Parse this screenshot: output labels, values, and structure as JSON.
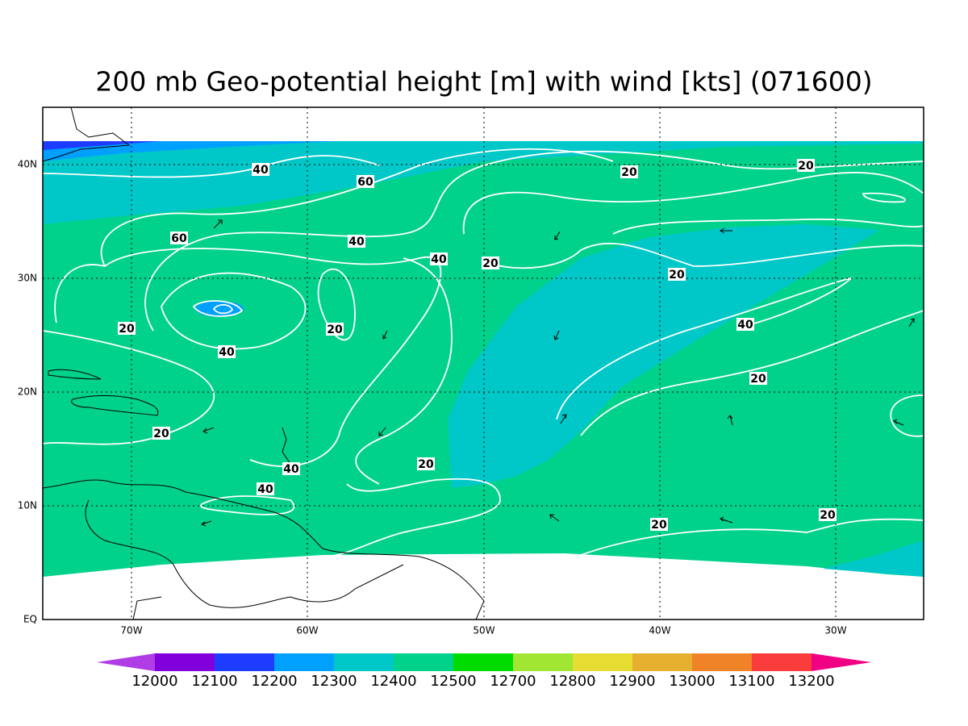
{
  "title": "200 mb Geo-potential height [m] with wind [kts] (071600)",
  "lon_labels": [
    "70W",
    "60W",
    "50W",
    "40W",
    "30W"
  ],
  "lat_labels": [
    "EQ",
    "10N",
    "20N",
    "30N",
    "40N"
  ],
  "contour_labels": [
    40,
    60,
    20,
    20,
    60,
    40,
    40,
    20,
    20,
    20,
    20,
    40,
    40,
    20,
    20,
    20,
    40,
    40,
    20,
    20
  ],
  "colorbar": {
    "levels": [
      12000,
      12100,
      12200,
      12300,
      12400,
      12500,
      12700,
      12800,
      12900,
      13000,
      13100,
      13200
    ],
    "colors": [
      "#b03ce6",
      "#8200dc",
      "#1e3cff",
      "#00a0ff",
      "#00c8c8",
      "#00d28c",
      "#00dc00",
      "#a0e632",
      "#e6dc32",
      "#e6af2d",
      "#f08228",
      "#fa3c3c",
      "#f00082"
    ]
  }
}
